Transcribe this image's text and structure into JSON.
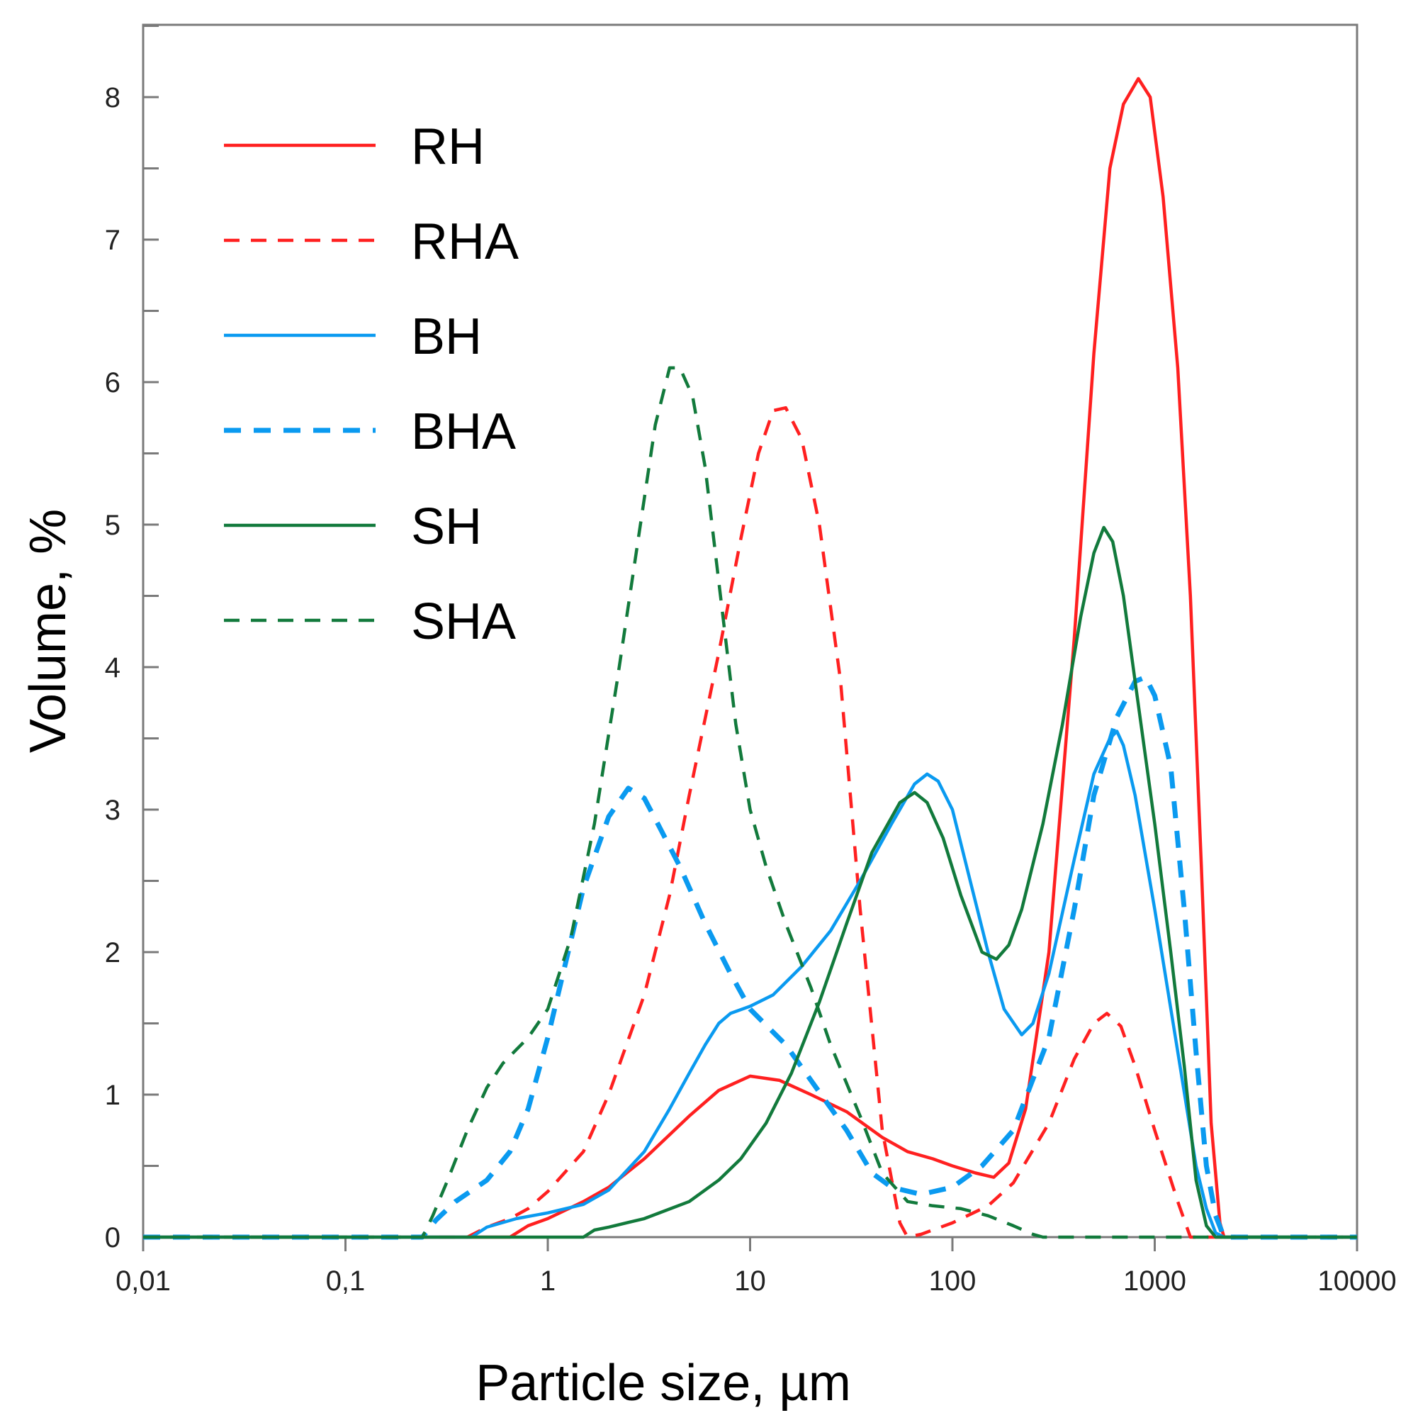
{
  "chart_data": {
    "type": "line",
    "title": "",
    "xlabel": "Particle size, µm",
    "ylabel": "Volume, %",
    "x_scale": "log",
    "xlim": [
      0.01,
      10000
    ],
    "ylim": [
      0,
      8.5
    ],
    "x_ticks": [
      0.01,
      0.1,
      1,
      10,
      100,
      1000,
      10000
    ],
    "x_tick_labels": [
      "0,01",
      "0,1",
      "1",
      "10",
      "100",
      "1000",
      "10000"
    ],
    "y_ticks": [
      0,
      1,
      2,
      3,
      4,
      5,
      6,
      7,
      8
    ],
    "y_tick_labels": [
      "0",
      "1",
      "2",
      "3",
      "4",
      "5",
      "6",
      "7",
      "8"
    ],
    "grid": false,
    "legend_position": "top-left",
    "series": [
      {
        "name": "RH",
        "color": "#ff2020",
        "dash": "solid",
        "width": "thin",
        "points": [
          [
            0.01,
            0
          ],
          [
            0.65,
            0
          ],
          [
            0.8,
            0.08
          ],
          [
            1,
            0.13
          ],
          [
            1.5,
            0.25
          ],
          [
            2,
            0.35
          ],
          [
            3,
            0.55
          ],
          [
            5,
            0.85
          ],
          [
            7,
            1.03
          ],
          [
            10,
            1.13
          ],
          [
            14,
            1.1
          ],
          [
            20,
            1.0
          ],
          [
            30,
            0.88
          ],
          [
            45,
            0.7
          ],
          [
            60,
            0.6
          ],
          [
            80,
            0.55
          ],
          [
            100,
            0.5
          ],
          [
            130,
            0.45
          ],
          [
            160,
            0.42
          ],
          [
            190,
            0.52
          ],
          [
            230,
            0.9
          ],
          [
            300,
            2.0
          ],
          [
            400,
            4.2
          ],
          [
            500,
            6.2
          ],
          [
            600,
            7.5
          ],
          [
            700,
            7.95
          ],
          [
            830,
            8.13
          ],
          [
            950,
            8.0
          ],
          [
            1100,
            7.3
          ],
          [
            1300,
            6.1
          ],
          [
            1500,
            4.5
          ],
          [
            1700,
            2.6
          ],
          [
            1900,
            0.8
          ],
          [
            2100,
            0.1
          ],
          [
            2200,
            0
          ],
          [
            10000,
            0
          ]
        ]
      },
      {
        "name": "RHA",
        "color": "#ff2020",
        "dash": "dashed",
        "width": "thin",
        "points": [
          [
            0.01,
            0
          ],
          [
            0.4,
            0
          ],
          [
            0.5,
            0.07
          ],
          [
            0.65,
            0.13
          ],
          [
            0.8,
            0.2
          ],
          [
            1,
            0.32
          ],
          [
            1.5,
            0.6
          ],
          [
            2,
            1.0
          ],
          [
            3,
            1.7
          ],
          [
            4,
            2.4
          ],
          [
            5,
            3.1
          ],
          [
            7,
            4.1
          ],
          [
            9,
            4.9
          ],
          [
            11,
            5.5
          ],
          [
            13,
            5.8
          ],
          [
            15,
            5.82
          ],
          [
            18,
            5.6
          ],
          [
            22,
            5.0
          ],
          [
            28,
            3.9
          ],
          [
            35,
            2.3
          ],
          [
            45,
            0.75
          ],
          [
            55,
            0.1
          ],
          [
            60,
            0
          ],
          [
            70,
            0.02
          ],
          [
            100,
            0.1
          ],
          [
            150,
            0.22
          ],
          [
            200,
            0.38
          ],
          [
            300,
            0.8
          ],
          [
            400,
            1.25
          ],
          [
            500,
            1.5
          ],
          [
            580,
            1.57
          ],
          [
            680,
            1.48
          ],
          [
            800,
            1.2
          ],
          [
            1000,
            0.75
          ],
          [
            1300,
            0.25
          ],
          [
            1500,
            0
          ],
          [
            10000,
            0
          ]
        ]
      },
      {
        "name": "BH",
        "color": "#0a9af0",
        "dash": "solid",
        "width": "thin",
        "points": [
          [
            0.01,
            0
          ],
          [
            0.42,
            0
          ],
          [
            0.5,
            0.07
          ],
          [
            0.7,
            0.13
          ],
          [
            1,
            0.17
          ],
          [
            1.5,
            0.23
          ],
          [
            2,
            0.33
          ],
          [
            3,
            0.6
          ],
          [
            4,
            0.9
          ],
          [
            5,
            1.15
          ],
          [
            6,
            1.35
          ],
          [
            7,
            1.5
          ],
          [
            8,
            1.57
          ],
          [
            10,
            1.62
          ],
          [
            13,
            1.7
          ],
          [
            18,
            1.9
          ],
          [
            25,
            2.15
          ],
          [
            35,
            2.5
          ],
          [
            50,
            2.9
          ],
          [
            65,
            3.18
          ],
          [
            75,
            3.25
          ],
          [
            85,
            3.2
          ],
          [
            100,
            3.0
          ],
          [
            120,
            2.55
          ],
          [
            150,
            2.0
          ],
          [
            180,
            1.6
          ],
          [
            220,
            1.42
          ],
          [
            250,
            1.5
          ],
          [
            300,
            1.85
          ],
          [
            400,
            2.65
          ],
          [
            500,
            3.25
          ],
          [
            600,
            3.5
          ],
          [
            650,
            3.55
          ],
          [
            700,
            3.45
          ],
          [
            800,
            3.1
          ],
          [
            1000,
            2.3
          ],
          [
            1300,
            1.3
          ],
          [
            1600,
            0.5
          ],
          [
            1800,
            0.2
          ],
          [
            2000,
            0.03
          ],
          [
            2200,
            0
          ],
          [
            10000,
            0
          ]
        ]
      },
      {
        "name": "BHA",
        "color": "#0a9af0",
        "dash": "dashed",
        "width": "thick",
        "points": [
          [
            0.01,
            0
          ],
          [
            0.24,
            0
          ],
          [
            0.28,
            0.12
          ],
          [
            0.35,
            0.25
          ],
          [
            0.5,
            0.4
          ],
          [
            0.65,
            0.6
          ],
          [
            0.8,
            0.9
          ],
          [
            1,
            1.4
          ],
          [
            1.5,
            2.45
          ],
          [
            2,
            2.95
          ],
          [
            2.5,
            3.15
          ],
          [
            3,
            3.08
          ],
          [
            3.5,
            2.9
          ],
          [
            4.5,
            2.6
          ],
          [
            6,
            2.2
          ],
          [
            8,
            1.85
          ],
          [
            10,
            1.6
          ],
          [
            15,
            1.35
          ],
          [
            20,
            1.1
          ],
          [
            30,
            0.75
          ],
          [
            40,
            0.45
          ],
          [
            50,
            0.35
          ],
          [
            70,
            0.3
          ],
          [
            100,
            0.35
          ],
          [
            140,
            0.5
          ],
          [
            200,
            0.75
          ],
          [
            300,
            1.4
          ],
          [
            400,
            2.3
          ],
          [
            500,
            3.1
          ],
          [
            650,
            3.65
          ],
          [
            800,
            3.9
          ],
          [
            900,
            3.93
          ],
          [
            1000,
            3.8
          ],
          [
            1200,
            3.3
          ],
          [
            1400,
            2.3
          ],
          [
            1600,
            1.3
          ],
          [
            1800,
            0.5
          ],
          [
            2000,
            0.15
          ],
          [
            2200,
            0
          ],
          [
            10000,
            0
          ]
        ]
      },
      {
        "name": "SH",
        "color": "#127a3c",
        "dash": "solid",
        "width": "thin",
        "points": [
          [
            0.01,
            0
          ],
          [
            1.5,
            0
          ],
          [
            1.7,
            0.05
          ],
          [
            2,
            0.07
          ],
          [
            3,
            0.13
          ],
          [
            5,
            0.25
          ],
          [
            7,
            0.4
          ],
          [
            9,
            0.55
          ],
          [
            12,
            0.8
          ],
          [
            16,
            1.15
          ],
          [
            22,
            1.65
          ],
          [
            30,
            2.2
          ],
          [
            40,
            2.7
          ],
          [
            55,
            3.05
          ],
          [
            65,
            3.12
          ],
          [
            75,
            3.05
          ],
          [
            90,
            2.8
          ],
          [
            110,
            2.4
          ],
          [
            140,
            2.0
          ],
          [
            165,
            1.95
          ],
          [
            190,
            2.05
          ],
          [
            220,
            2.3
          ],
          [
            280,
            2.9
          ],
          [
            350,
            3.6
          ],
          [
            430,
            4.35
          ],
          [
            500,
            4.8
          ],
          [
            560,
            4.98
          ],
          [
            620,
            4.88
          ],
          [
            700,
            4.5
          ],
          [
            800,
            3.9
          ],
          [
            1000,
            2.9
          ],
          [
            1200,
            2.0
          ],
          [
            1400,
            1.2
          ],
          [
            1600,
            0.4
          ],
          [
            1800,
            0.08
          ],
          [
            2000,
            0
          ],
          [
            10000,
            0
          ]
        ]
      },
      {
        "name": "SHA",
        "color": "#127a3c",
        "dash": "dashed",
        "width": "thin",
        "points": [
          [
            0.01,
            0
          ],
          [
            0.24,
            0
          ],
          [
            0.27,
            0.15
          ],
          [
            0.32,
            0.4
          ],
          [
            0.4,
            0.75
          ],
          [
            0.5,
            1.05
          ],
          [
            0.6,
            1.22
          ],
          [
            0.8,
            1.4
          ],
          [
            1,
            1.6
          ],
          [
            1.3,
            2.1
          ],
          [
            1.7,
            2.9
          ],
          [
            2.2,
            3.9
          ],
          [
            2.8,
            4.9
          ],
          [
            3.4,
            5.7
          ],
          [
            4,
            6.1
          ],
          [
            4.5,
            6.1
          ],
          [
            5.2,
            5.9
          ],
          [
            6,
            5.4
          ],
          [
            7,
            4.6
          ],
          [
            8.5,
            3.6
          ],
          [
            10,
            3.0
          ],
          [
            12,
            2.6
          ],
          [
            15,
            2.2
          ],
          [
            20,
            1.75
          ],
          [
            25,
            1.35
          ],
          [
            35,
            0.85
          ],
          [
            45,
            0.45
          ],
          [
            60,
            0.25
          ],
          [
            80,
            0.22
          ],
          [
            110,
            0.2
          ],
          [
            150,
            0.15
          ],
          [
            200,
            0.08
          ],
          [
            250,
            0.02
          ],
          [
            280,
            0
          ],
          [
            10000,
            0
          ]
        ]
      }
    ]
  }
}
